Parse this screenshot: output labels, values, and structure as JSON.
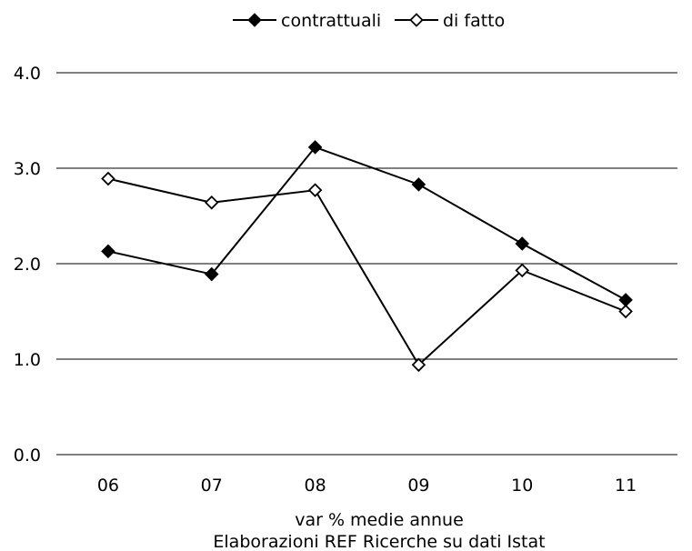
{
  "chart_data": {
    "type": "line",
    "categories": [
      "06",
      "07",
      "08",
      "09",
      "10",
      "11"
    ],
    "series": [
      {
        "name": "contrattuali",
        "values": [
          2.13,
          1.89,
          3.22,
          2.83,
          2.21,
          1.62
        ],
        "marker": "diamond-filled",
        "color": "#000000"
      },
      {
        "name": "di fatto",
        "values": [
          2.89,
          2.64,
          2.77,
          0.94,
          1.93,
          1.5
        ],
        "marker": "diamond-open",
        "color": "#000000"
      }
    ],
    "ylim": [
      0,
      4
    ],
    "yticks": [
      "0.0",
      "1.0",
      "2.0",
      "3.0",
      "4.0"
    ],
    "grid": true,
    "legend_position": "top-center",
    "xlabel": "var % medie annue",
    "source": "Elaborazioni REF Ricerche su dati Istat"
  }
}
